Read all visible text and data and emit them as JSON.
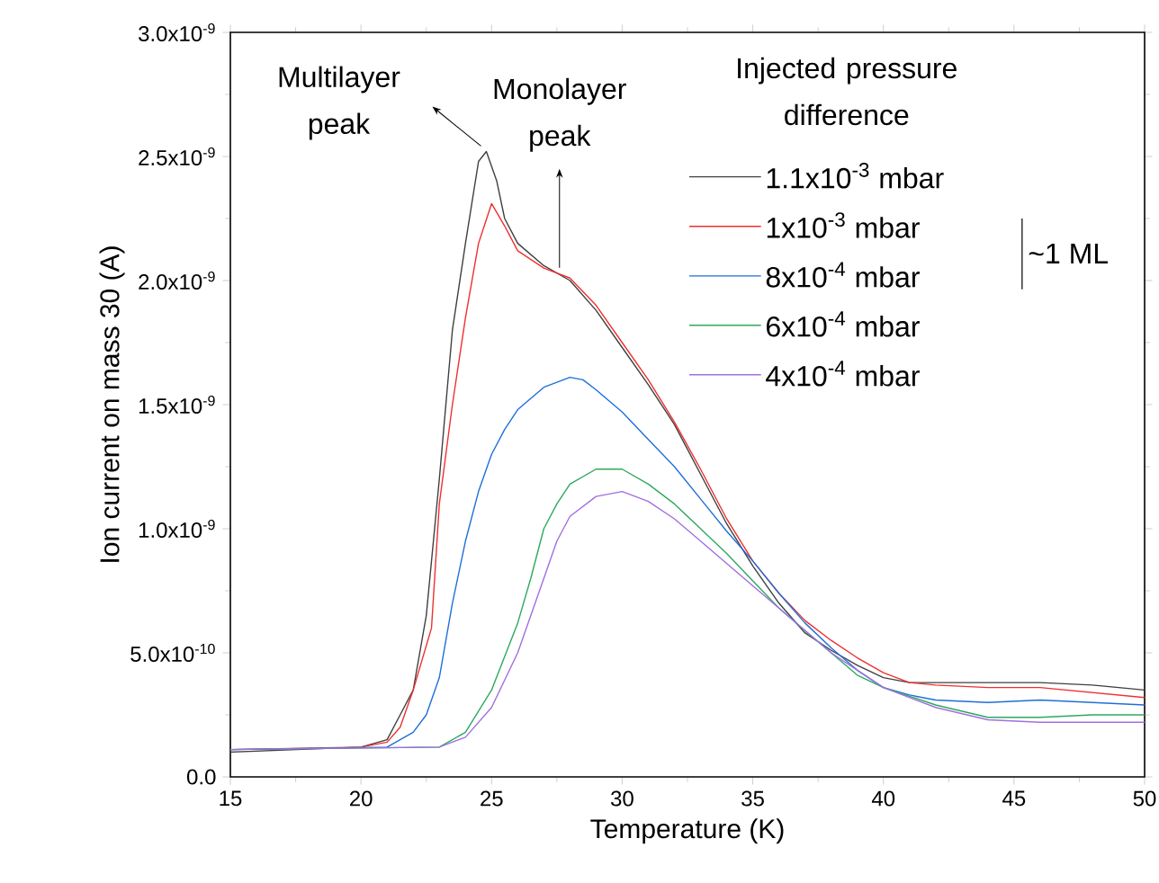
{
  "chart_data": {
    "type": "line",
    "xlabel": "Temperature (K)",
    "ylabel": "Ion current on mass 30 (A)",
    "legend_title": "Injected pressure difference",
    "xlim": [
      15,
      50
    ],
    "xticks": [
      15,
      20,
      25,
      30,
      35,
      40,
      45,
      50
    ],
    "ylim": [
      0,
      3e-09
    ],
    "yticks": [
      {
        "value": 0,
        "label": "0.0"
      },
      {
        "value": 5e-10,
        "label": "5.0x10$^{-10}$"
      },
      {
        "value": 1e-09,
        "label": "1.0x10$^{-9}$"
      },
      {
        "value": 1.5e-09,
        "label": "1.5x10$^{-9}$"
      },
      {
        "value": 2e-09,
        "label": "2.0x10$^{-9}$"
      },
      {
        "value": 2.5e-09,
        "label": "2.5x10$^{-9}$"
      },
      {
        "value": 3e-09,
        "label": "3.0x10$^{-9}$"
      }
    ],
    "grid": false,
    "legend": "top right",
    "marker": "none",
    "line_style": "solid",
    "annotations": [
      {
        "text": "Multilayer peak",
        "x": 24.8,
        "y": 2.52e-09
      },
      {
        "text": "Monolayer peak",
        "x": 27.6,
        "y": 2.03e-09
      },
      "~1 ML"
    ],
    "series": [
      {
        "name": "1.1x10$^{-3}$ mbar",
        "color": "#404040",
        "x": [
          15,
          20,
          21,
          21.5,
          22,
          22.5,
          23,
          23.5,
          24,
          24.5,
          24.8,
          25.2,
          25.5,
          26,
          27,
          28,
          29,
          30,
          31,
          32,
          33,
          34,
          35,
          36,
          37,
          38,
          39,
          40,
          41,
          42,
          44,
          46,
          48,
          50
        ],
        "values": [
          1e-10,
          1.2e-10,
          1.5e-10,
          2.5e-10,
          3.5e-10,
          6.5e-10,
          1.2e-09,
          1.8e-09,
          2.15e-09,
          2.48e-09,
          2.52e-09,
          2.4e-09,
          2.25e-09,
          2.15e-09,
          2.06e-09,
          2e-09,
          1.88e-09,
          1.73e-09,
          1.58e-09,
          1.42e-09,
          1.22e-09,
          1.02e-09,
          8.5e-10,
          7e-10,
          5.8e-10,
          5.1e-10,
          4.5e-10,
          4e-10,
          3.8e-10,
          3.8e-10,
          3.8e-10,
          3.8e-10,
          3.7e-10,
          3.5e-10
        ]
      },
      {
        "name": "1x10$^{-3}$ mbar",
        "color": "#ee3030",
        "x": [
          15,
          20,
          21,
          21.5,
          22,
          22.7,
          23,
          23.5,
          24,
          24.5,
          25,
          25.5,
          26,
          27,
          28,
          29,
          30,
          31,
          32,
          33,
          34,
          35,
          36,
          37,
          38,
          39,
          40,
          41,
          42,
          44,
          46,
          48,
          50
        ],
        "values": [
          1.1e-10,
          1.2e-10,
          1.4e-10,
          2e-10,
          3.5e-10,
          6e-10,
          1.1e-09,
          1.5e-09,
          1.85e-09,
          2.15e-09,
          2.31e-09,
          2.22e-09,
          2.12e-09,
          2.05e-09,
          2.01e-09,
          1.9e-09,
          1.75e-09,
          1.6e-09,
          1.43e-09,
          1.24e-09,
          1.04e-09,
          8.7e-10,
          7.4e-10,
          6.3e-10,
          5.5e-10,
          4.8e-10,
          4.2e-10,
          3.8e-10,
          3.7e-10,
          3.6e-10,
          3.6e-10,
          3.4e-10,
          3.2e-10
        ]
      },
      {
        "name": "8x10$^{-4}$ mbar",
        "color": "#1f6fd8",
        "x": [
          15,
          21,
          22,
          22.5,
          23,
          23.5,
          24,
          24.5,
          25,
          25.5,
          26,
          27,
          28,
          28.5,
          29,
          30,
          31,
          32,
          33,
          34,
          35,
          36,
          37,
          38,
          39,
          40,
          41,
          42,
          44,
          46,
          48,
          50
        ],
        "values": [
          1.1e-10,
          1.2e-10,
          1.8e-10,
          2.5e-10,
          4e-10,
          7e-10,
          9.5e-10,
          1.15e-09,
          1.3e-09,
          1.4e-09,
          1.48e-09,
          1.57e-09,
          1.61e-09,
          1.6e-09,
          1.56e-09,
          1.47e-09,
          1.36e-09,
          1.25e-09,
          1.12e-09,
          9.9e-10,
          8.7e-10,
          7.4e-10,
          6.2e-10,
          5.2e-10,
          4.3e-10,
          3.6e-10,
          3.3e-10,
          3.1e-10,
          3e-10,
          3.1e-10,
          3e-10,
          2.9e-10
        ]
      },
      {
        "name": "6x10$^{-4}$ mbar",
        "color": "#2ea860",
        "x": [
          15,
          23,
          24,
          25,
          26,
          26.5,
          27,
          27.5,
          28,
          29,
          30,
          31,
          32,
          33,
          34,
          35,
          36,
          37,
          38,
          39,
          40,
          42,
          44,
          46,
          48,
          50
        ],
        "values": [
          1.1e-10,
          1.2e-10,
          1.8e-10,
          3.5e-10,
          6.2e-10,
          8e-10,
          1e-09,
          1.1e-09,
          1.18e-09,
          1.24e-09,
          1.24e-09,
          1.18e-09,
          1.1e-09,
          1e-09,
          9e-10,
          7.9e-10,
          6.8e-10,
          5.9e-10,
          5e-10,
          4.1e-10,
          3.6e-10,
          2.9e-10,
          2.4e-10,
          2.4e-10,
          2.5e-10,
          2.5e-10
        ]
      },
      {
        "name": "4x10$^{-4}$ mbar",
        "color": "#a070e0",
        "x": [
          15,
          23,
          24,
          25,
          26,
          27,
          27.5,
          28,
          29,
          30,
          31,
          32,
          33,
          34,
          35,
          36,
          37,
          38,
          39,
          40,
          42,
          44,
          46,
          48,
          50
        ],
        "values": [
          1.1e-10,
          1.2e-10,
          1.6e-10,
          2.8e-10,
          5e-10,
          8e-10,
          9.5e-10,
          1.05e-09,
          1.13e-09,
          1.15e-09,
          1.11e-09,
          1.04e-09,
          9.5e-10,
          8.6e-10,
          7.7e-10,
          6.8e-10,
          5.9e-10,
          5e-10,
          4.3e-10,
          3.6e-10,
          2.8e-10,
          2.3e-10,
          2.2e-10,
          2.2e-10,
          2.2e-10
        ]
      }
    ]
  }
}
